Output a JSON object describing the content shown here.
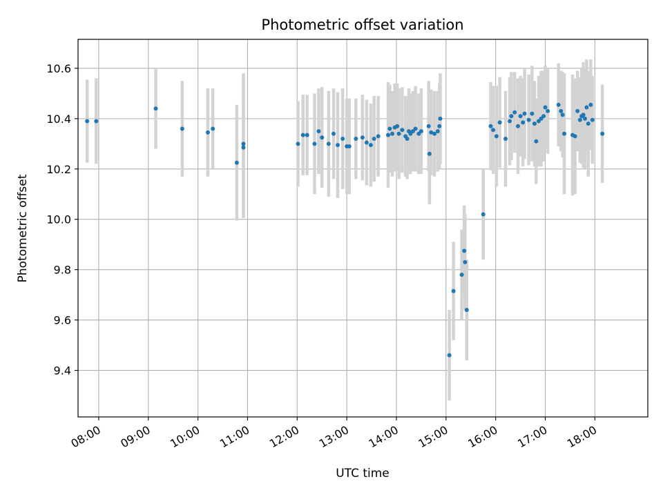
{
  "chart_data": {
    "type": "scatter",
    "title": "Photometric offset variation",
    "xlabel": "UTC time",
    "ylabel": "Photometric offset",
    "xlim": [
      "07:35",
      "19:04"
    ],
    "ylim": [
      9.215,
      10.715
    ],
    "grid": true,
    "x_ticks": [
      "08:00",
      "09:00",
      "10:00",
      "11:00",
      "12:00",
      "13:00",
      "14:00",
      "15:00",
      "16:00",
      "17:00",
      "18:00"
    ],
    "y_ticks": [
      9.4,
      9.6,
      9.8,
      10.0,
      10.2,
      10.4,
      10.6
    ],
    "y_tick_labels": [
      "9.4",
      "9.6",
      "9.8",
      "10.0",
      "10.2",
      "10.4",
      "10.6"
    ],
    "colors": {
      "points": "#1f77b4",
      "errorbars": "#d3d3d3",
      "grid": "#b0b0b0"
    },
    "series": [
      {
        "x": [
          "07:46",
          "07:57",
          "09:09",
          "09:41",
          "10:12",
          "10:18",
          "10:47",
          "10:55",
          "10:55",
          "12:01",
          "12:07",
          "12:12",
          "12:21",
          "12:26",
          "12:30",
          "12:38",
          "12:44",
          "12:49",
          "12:55",
          "13:00",
          "13:03",
          "13:11",
          "13:19",
          "13:24",
          "13:29",
          "13:33",
          "13:38",
          "13:50",
          "13:52",
          "13:55",
          "13:58",
          "14:01",
          "14:03",
          "14:07",
          "14:11",
          "14:13",
          "14:15",
          "14:17",
          "14:20",
          "14:23",
          "14:27",
          "14:30",
          "14:39",
          "14:40",
          "14:42",
          "14:46",
          "14:50",
          "14:52",
          "14:53",
          "15:04",
          "15:09",
          "15:19",
          "15:22",
          "15:23",
          "15:25",
          "15:45",
          "15:54",
          "15:57",
          "16:01",
          "16:05",
          "16:12",
          "16:17",
          "16:19",
          "16:23",
          "16:27",
          "16:30",
          "16:33",
          "16:35",
          "16:40",
          "16:44",
          "16:47",
          "16:49",
          "16:52",
          "16:55",
          "16:58",
          "17:00",
          "17:03",
          "17:16",
          "17:19",
          "17:21",
          "17:23",
          "17:33",
          "17:36",
          "17:39",
          "17:42",
          "17:44",
          "17:46",
          "17:48",
          "17:50",
          "17:52",
          "17:55",
          "17:57",
          "18:09"
        ],
        "y": [
          10.39,
          10.39,
          10.44,
          10.36,
          10.345,
          10.36,
          10.225,
          10.3,
          10.285,
          10.3,
          10.335,
          10.335,
          10.3,
          10.35,
          10.325,
          10.3,
          10.34,
          10.295,
          10.32,
          10.29,
          10.29,
          10.32,
          10.325,
          10.305,
          10.295,
          10.32,
          10.33,
          10.335,
          10.36,
          10.34,
          10.365,
          10.37,
          10.34,
          10.355,
          10.33,
          10.32,
          10.35,
          10.34,
          10.35,
          10.36,
          10.34,
          10.35,
          10.37,
          10.26,
          10.345,
          10.34,
          10.35,
          10.37,
          10.4,
          9.46,
          9.715,
          9.78,
          9.875,
          9.83,
          9.64,
          10.02,
          10.37,
          10.355,
          10.33,
          10.385,
          10.32,
          10.39,
          10.41,
          10.425,
          10.37,
          10.41,
          10.385,
          10.42,
          10.395,
          10.42,
          10.38,
          10.31,
          10.39,
          10.4,
          10.41,
          10.445,
          10.43,
          10.455,
          10.43,
          10.415,
          10.34,
          10.335,
          10.33,
          10.43,
          10.395,
          10.41,
          10.415,
          10.4,
          10.445,
          10.38,
          10.455,
          10.395,
          10.34
        ],
        "err": [
          0.165,
          0.17,
          0.16,
          0.19,
          0.175,
          0.16,
          0.23,
          0.28,
          0.28,
          0.17,
          0.16,
          0.16,
          0.2,
          0.17,
          0.2,
          0.21,
          0.18,
          0.21,
          0.2,
          0.19,
          0.19,
          0.16,
          0.17,
          0.17,
          0.165,
          0.17,
          0.16,
          0.21,
          0.175,
          0.17,
          0.175,
          0.17,
          0.18,
          0.17,
          0.16,
          0.16,
          0.17,
          0.16,
          0.16,
          0.17,
          0.16,
          0.17,
          0.18,
          0.2,
          0.17,
          0.17,
          0.16,
          0.17,
          0.18,
          0.18,
          0.195,
          0.18,
          0.18,
          0.19,
          0.2,
          0.18,
          0.175,
          0.175,
          0.2,
          0.18,
          0.19,
          0.175,
          0.175,
          0.16,
          0.19,
          0.16,
          0.175,
          0.18,
          0.18,
          0.19,
          0.17,
          0.17,
          0.18,
          0.19,
          0.18,
          0.165,
          0.17,
          0.165,
          0.16,
          0.17,
          0.24,
          0.24,
          0.23,
          0.16,
          0.17,
          0.19,
          0.21,
          0.2,
          0.19,
          0.21,
          0.18,
          0.175,
          0.195
        ]
      }
    ]
  }
}
